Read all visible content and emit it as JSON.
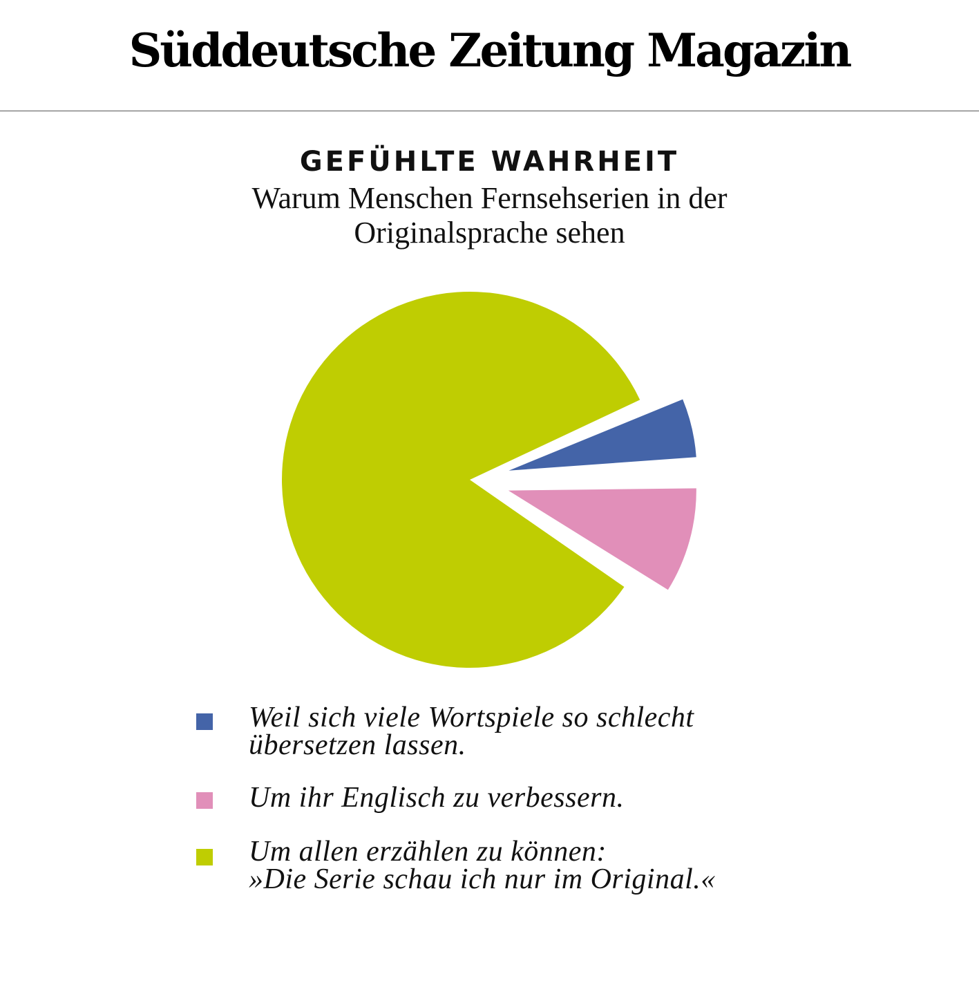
{
  "masthead": {
    "title": "Süddeutsche Zeitung Magazin"
  },
  "chart_data": {
    "type": "pie",
    "title": "GEFÜHLTE WAHRHEIT",
    "subtitle": "Warum Menschen Fernsehserien in der Originalsprache sehen",
    "slices": [
      {
        "label": "Weil sich viele Wortspiele so schlecht übersetzen lassen.",
        "value": 6,
        "color": "#4464a8",
        "exploded": true
      },
      {
        "label": "Um ihr Englisch zu verbessern.",
        "value": 10,
        "color": "#e18fb9",
        "exploded": true
      },
      {
        "label": "Um allen erzählen zu können: »Die Serie schau ich nur im Original.«",
        "value": 84,
        "color": "#bfcd02",
        "exploded": false
      }
    ],
    "legend": "bottom"
  }
}
